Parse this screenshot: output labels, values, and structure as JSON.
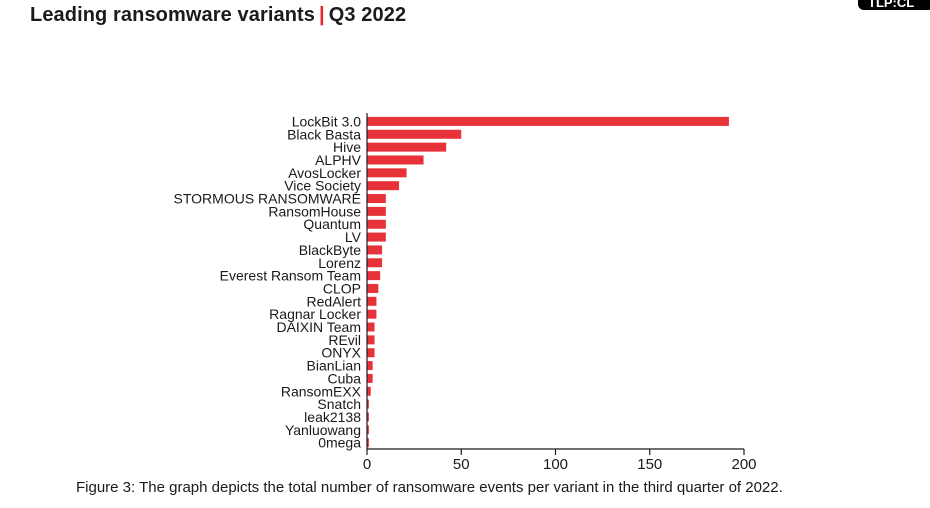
{
  "header": {
    "title": "Leading ransomware variants",
    "separator": "|",
    "period": "Q3 2022"
  },
  "badge": {
    "text": "TLP:CL"
  },
  "caption": "Figure 3: The graph depicts the total number of ransomware events per variant in the third quarter of 2022.",
  "colors": {
    "bar": "#e8323a",
    "axis": "#1a1a1a",
    "accent": "#e5262d"
  },
  "chart_data": {
    "type": "bar",
    "orientation": "horizontal",
    "categories": [
      "LockBit 3.0",
      "Black Basta",
      "Hive",
      "ALPHV",
      "AvosLocker",
      "Vice Society",
      "STORMOUS RANSOMWARE",
      "RansomHouse",
      "Quantum",
      "LV",
      "BlackByte",
      "Lorenz",
      "Everest Ransom Team",
      "CLOP",
      "RedAlert",
      "Ragnar Locker",
      "DAIXIN Team",
      "REvil",
      "ONYX",
      "BianLian",
      "Cuba",
      "RansomEXX",
      "Snatch",
      "leak2138",
      "Yanluowang",
      "0mega"
    ],
    "values": [
      192,
      50,
      42,
      30,
      21,
      17,
      10,
      10,
      10,
      10,
      8,
      8,
      7,
      6,
      5,
      5,
      4,
      4,
      4,
      3,
      3,
      2,
      1,
      1,
      1,
      1
    ],
    "xlim": [
      0,
      200
    ],
    "xticks": [
      0,
      50,
      100,
      150,
      200
    ],
    "xlabel": "",
    "ylabel": "",
    "grid": false,
    "legend": "none"
  }
}
